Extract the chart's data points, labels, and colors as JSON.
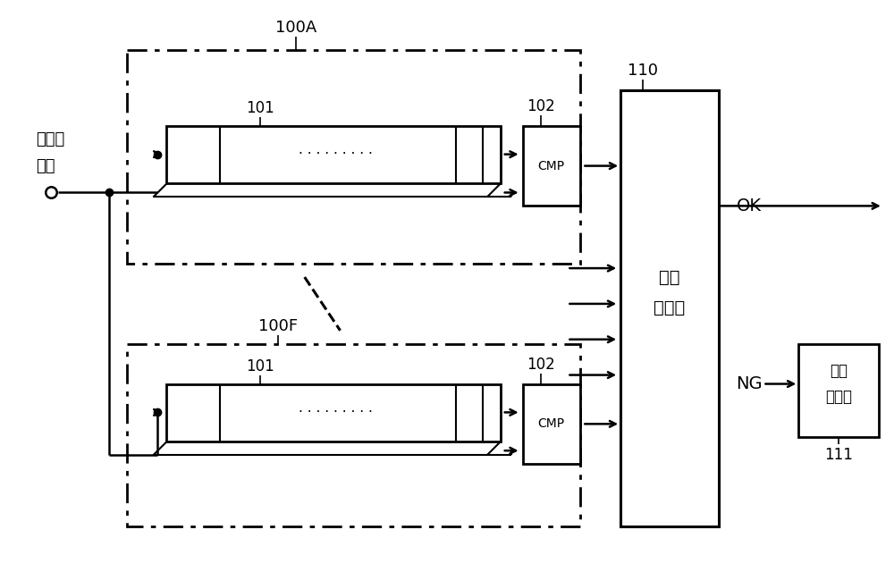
{
  "bg_color": "#ffffff",
  "line_color": "#000000",
  "label_dianliuzhi": "电流值",
  "label_shuju": "数据",
  "label_100A": "100A",
  "label_100F": "100F",
  "label_101": "101",
  "label_102": "102",
  "label_CMP": "CMP",
  "label_110": "110",
  "label_duanxian": "断线",
  "label_panding": "判定部",
  "label_OK": "OK",
  "label_NG": "NG",
  "label_111": "111",
  "label_yichang": "异常",
  "label_chuli": "处理部",
  "label_dots": "· · · · · · · · · ·"
}
